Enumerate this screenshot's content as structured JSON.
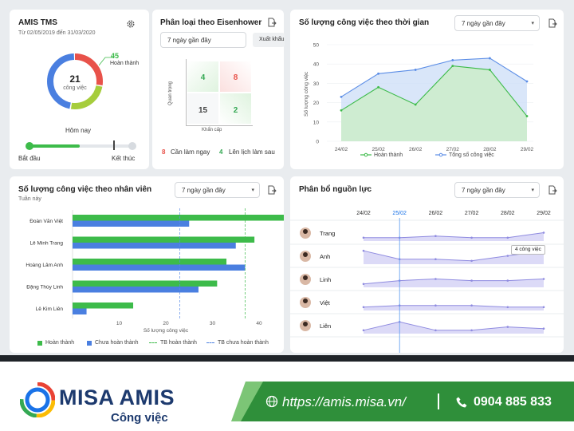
{
  "card_tms": {
    "title": "AMIS TMS",
    "date_range": "Từ 02/05/2019 đến 31/03/2020",
    "total": "21",
    "total_label": "công việc",
    "done_value": "45",
    "done_label": "Hoàn thành",
    "donut_fractions": [
      0.28,
      0.25,
      0.47
    ],
    "today_label": "Hôm nay",
    "start_label": "Bắt đầu",
    "end_label": "Kết thúc",
    "progress_fraction": 0.5,
    "today_fraction": 0.83
  },
  "card_eisenhower": {
    "title": "Phân loại theo Eisenhower",
    "period": "7 ngày gần đây",
    "export_label": "Xuất khẩu",
    "y_axis": "Quan trọng",
    "x_axis": "Khẩn cấp",
    "cells": [
      "4",
      "8",
      "15",
      "2"
    ],
    "legend": [
      {
        "num": "8",
        "label": "Cần làm ngay",
        "color": "#e8524a"
      },
      {
        "num": "4",
        "label": "Lên lịch làm sau",
        "color": "#34a853"
      }
    ]
  },
  "card_time": {
    "title": "Số lượng công việc theo thời gian",
    "period": "7 ngày gần đây",
    "legend_done": "Hoàn thành",
    "legend_total": "Tổng số công việc"
  },
  "card_staff": {
    "title": "Số lượng công việc theo nhân viên",
    "subtitle": "Tuần này",
    "period": "7 ngày gần đây",
    "legend": [
      "Hoàn thành",
      "Chưa hoàn thành",
      "TB hoàn thành",
      "TB chưa hoàn thành"
    ]
  },
  "card_resource": {
    "title": "Phân bổ nguồn lực",
    "period": "7 ngày gần đây",
    "dates": [
      "24/02",
      "25/02",
      "26/02",
      "27/02",
      "28/02",
      "29/02"
    ],
    "highlight_date": "25/02",
    "tooltip": "4 công việc",
    "people": [
      "Trang",
      "Anh",
      "Linh",
      "Việt",
      "Liên"
    ]
  },
  "colors": {
    "green": "#3dbb4a",
    "blue": "#4a7fe0",
    "red": "#e8524a",
    "light_blue": "#5b8de6",
    "purple": "#8f8be0",
    "footer_green": "#3c9a3a"
  },
  "chart_data": [
    {
      "type": "area",
      "title": "Số lượng công việc theo thời gian",
      "ylabel": "Số lượng công việc",
      "x": [
        "24/02",
        "25/02",
        "26/02",
        "27/02",
        "28/02",
        "29/02"
      ],
      "ylim": [
        0,
        50
      ],
      "yticks": [
        0,
        10,
        20,
        30,
        40,
        50
      ],
      "series": [
        {
          "name": "Hoàn thành",
          "values": [
            16,
            28,
            19,
            39,
            37,
            13
          ]
        },
        {
          "name": "Tổng số công việc",
          "values": [
            23,
            35,
            37,
            42,
            43,
            31
          ]
        }
      ]
    },
    {
      "type": "bar",
      "title": "Số lượng công việc theo nhân viên",
      "xlabel": "Số lượng công việc",
      "categories": [
        "Đoàn Văn Việt",
        "Lê Minh Trang",
        "Hoàng Lâm Anh",
        "Đặng Thùy Linh",
        "Lê Kim Liên"
      ],
      "xlim": [
        0,
        55
      ],
      "xticks": [
        10,
        20,
        30,
        40,
        50
      ],
      "series": [
        {
          "name": "Hoàn thành",
          "values": [
            52,
            39,
            33,
            31,
            13
          ]
        },
        {
          "name": "Chưa hoàn thành",
          "values": [
            25,
            35,
            37,
            27,
            3
          ]
        }
      ],
      "avg_done": 37,
      "avg_not_done": 23
    },
    {
      "type": "line",
      "title": "Phân bổ nguồn lực",
      "x": [
        "24/02",
        "25/02",
        "26/02",
        "27/02",
        "28/02",
        "29/02"
      ],
      "series": [
        {
          "name": "Trang",
          "values": [
            1,
            1,
            1.5,
            1,
            1,
            2.5
          ]
        },
        {
          "name": "Anh",
          "values": [
            4,
            1.5,
            1.5,
            1,
            2.5,
            4
          ]
        },
        {
          "name": "Linh",
          "values": [
            1,
            2,
            2.5,
            2,
            2,
            2.5
          ]
        },
        {
          "name": "Việt",
          "values": [
            1,
            1.5,
            1.5,
            1.5,
            1,
            1
          ]
        },
        {
          "name": "Liên",
          "values": [
            1,
            3.5,
            1,
            1,
            2,
            1.5
          ]
        }
      ]
    }
  ],
  "footer": {
    "brand": "MISA AMIS",
    "brand_sub": "Công việc",
    "url": "https://amis.misa.vn/",
    "phone": "0904 885 833"
  }
}
